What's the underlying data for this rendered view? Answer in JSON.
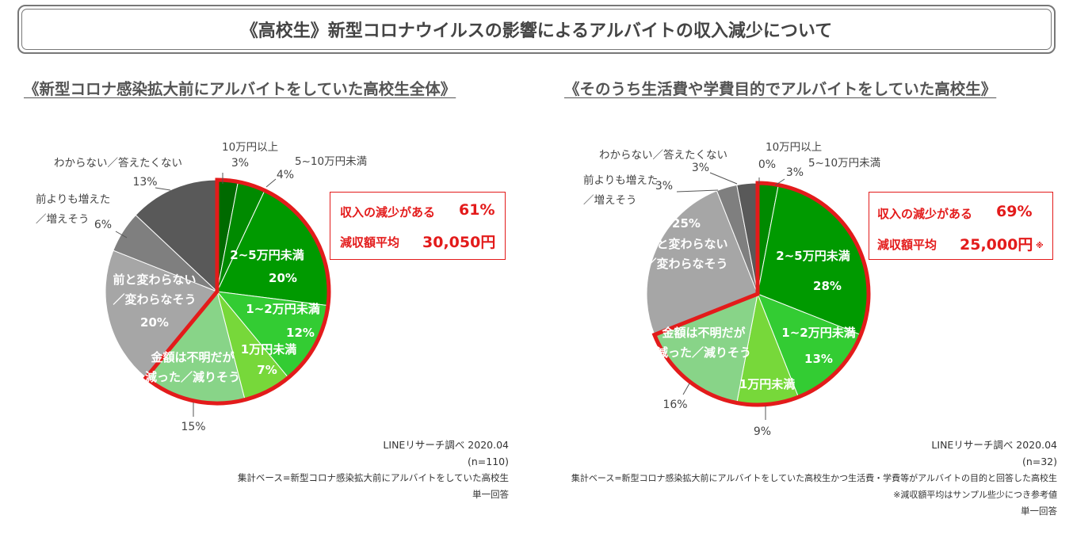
{
  "title": "《高校生》新型コロナウイルスの影響によるアルバイトの収入減少について",
  "colors": {
    "highlight": "#e31b1b",
    "bracket": "#e31b1b"
  },
  "chart_data": [
    {
      "type": "pie",
      "title": "《新型コロナ感染拡大前にアルバイトをしていた高校生全体》",
      "slices": [
        {
          "label": "10万円以上",
          "value": 3,
          "pct_label": "3%",
          "color": "#006a00"
        },
        {
          "label": "5~10万円未満",
          "value": 4,
          "pct_label": "4%",
          "color": "#008a00"
        },
        {
          "label": "2~5万円未満",
          "value": 20,
          "pct_label": "20%",
          "color": "#009a00"
        },
        {
          "label": "1~2万円未満",
          "value": 12,
          "pct_label": "12%",
          "color": "#33cc33"
        },
        {
          "label": "1万円未満",
          "value": 7,
          "pct_label": "7%",
          "color": "#77d83a"
        },
        {
          "label": "金額は不明だが\n減った／減りそう",
          "value": 15,
          "pct_label": "15%",
          "color": "#88d488"
        },
        {
          "label": "前と変わらない\n／変わらなそう",
          "value": 20,
          "pct_label": "20%",
          "color": "#a6a6a6"
        },
        {
          "label": "前よりも増えた\n／増えそう",
          "value": 6,
          "pct_label": "6%",
          "color": "#7f7f7f"
        },
        {
          "label": "わからない／答えたくない",
          "value": 13,
          "pct_label": "13%",
          "color": "#595959"
        }
      ],
      "callout": {
        "decrease_label": "収入の減少がある",
        "decrease_value": "61%",
        "avg_label": "減収額平均",
        "avg_value": "30,050円",
        "avg_note": ""
      },
      "source": {
        "line1": "LINEリサーチ調べ 2020.04",
        "line2": "(n=110)",
        "line3": "集計ベース=新型コロナ感染拡大前にアルバイトをしていた高校生",
        "line4": "単一回答",
        "line5": ""
      }
    },
    {
      "type": "pie",
      "title": "《そのうち生活費や学費目的でアルバイトをしていた高校生》",
      "slices": [
        {
          "label": "10万円以上",
          "value": 0,
          "pct_label": "0%",
          "color": "#006a00"
        },
        {
          "label": "5~10万円未満",
          "value": 3,
          "pct_label": "3%",
          "color": "#008a00"
        },
        {
          "label": "2~5万円未満",
          "value": 28,
          "pct_label": "28%",
          "color": "#009a00"
        },
        {
          "label": "1~2万円未満",
          "value": 13,
          "pct_label": "13%",
          "color": "#33cc33"
        },
        {
          "label": "1万円未満",
          "value": 9,
          "pct_label": "9%",
          "color": "#77d83a"
        },
        {
          "label": "金額は不明だが\n減った／減りそう",
          "value": 16,
          "pct_label": "16%",
          "color": "#88d488"
        },
        {
          "label": "前と変わらない\n／変わらなそう",
          "value": 25,
          "pct_label": "25%",
          "color": "#a6a6a6"
        },
        {
          "label": "前よりも増えた\n／増えそう",
          "value": 3,
          "pct_label": "3%",
          "color": "#7f7f7f"
        },
        {
          "label": "わからない／答えたくない",
          "value": 3,
          "pct_label": "3%",
          "color": "#595959"
        }
      ],
      "callout": {
        "decrease_label": "収入の減少がある",
        "decrease_value": "69%",
        "avg_label": "減収額平均",
        "avg_value": "25,000円",
        "avg_note": "※"
      },
      "source": {
        "line1": "LINEリサーチ調べ 2020.04",
        "line2": "(n=32)",
        "line3": "集計ベース=新型コロナ感染拡大前にアルバイトをしていた高校生かつ生活費・学費等がアルバイトの目的と回答した高校生",
        "line4": "※減収額平均はサンプル些少につき参考値",
        "line5": "単一回答"
      }
    }
  ]
}
